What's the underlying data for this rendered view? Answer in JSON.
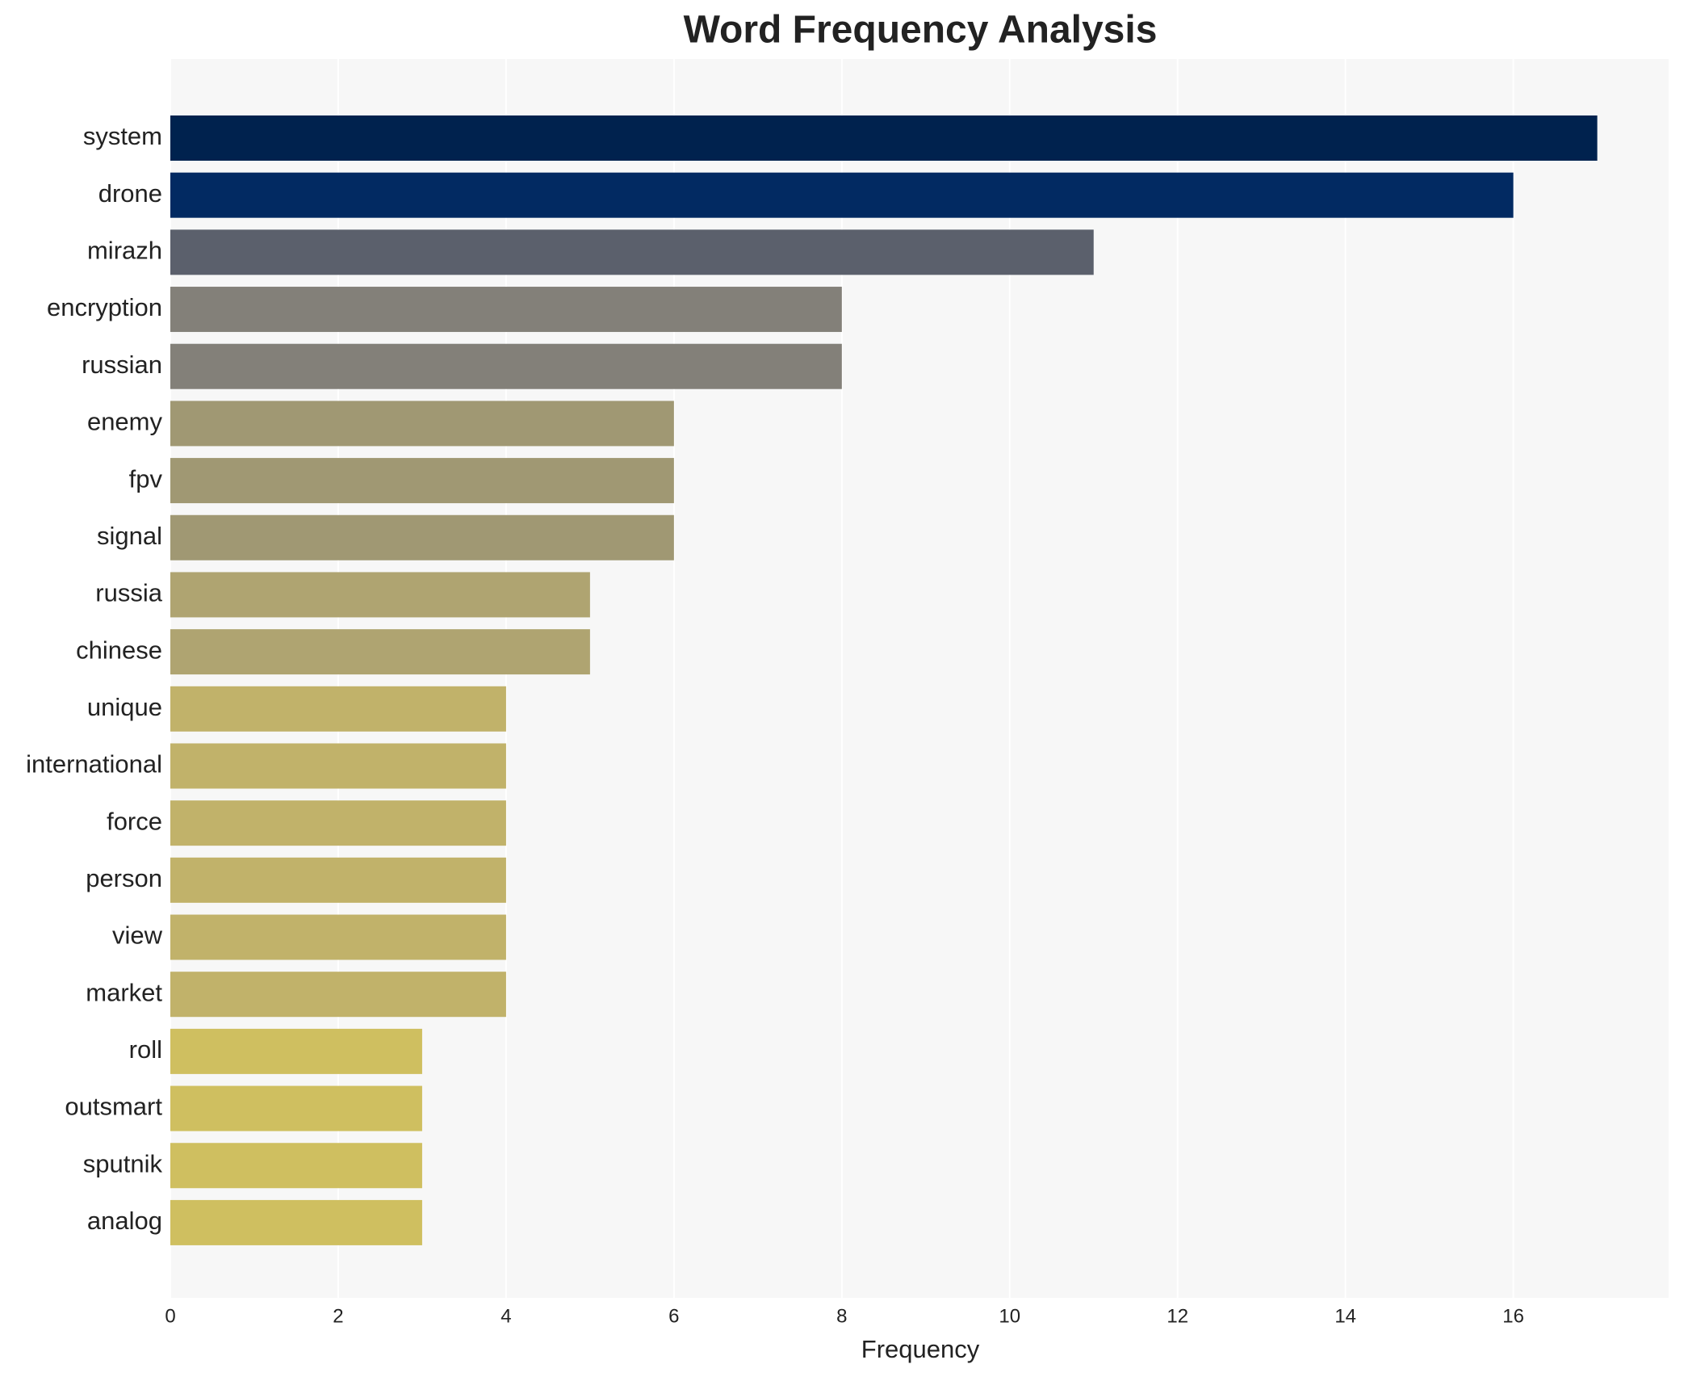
{
  "chart_data": {
    "type": "bar",
    "orientation": "horizontal",
    "title": "Word Frequency Analysis",
    "xlabel": "Frequency",
    "categories": [
      "system",
      "drone",
      "mirazh",
      "encryption",
      "russian",
      "enemy",
      "fpv",
      "signal",
      "russia",
      "chinese",
      "unique",
      "international",
      "force",
      "person",
      "view",
      "market",
      "roll",
      "outsmart",
      "sputnik",
      "analog"
    ],
    "values": [
      17,
      16,
      11,
      8,
      8,
      6,
      6,
      6,
      5,
      5,
      4,
      4,
      4,
      4,
      4,
      4,
      3,
      3,
      3,
      3
    ],
    "colors": [
      "#00224e",
      "#022a62",
      "#5b606c",
      "#838079",
      "#838079",
      "#a09873",
      "#a09873",
      "#a09873",
      "#afa471",
      "#afa471",
      "#c1b26a",
      "#c1b26a",
      "#c1b26a",
      "#c1b26a",
      "#c1b26a",
      "#c1b26a",
      "#cfbf60",
      "#cfbf60",
      "#cfbf60",
      "#cfbf60"
    ],
    "xlim": [
      0,
      17.85
    ],
    "xticks": [
      0,
      2,
      4,
      6,
      8,
      10,
      12,
      14,
      16
    ],
    "grid": true
  }
}
